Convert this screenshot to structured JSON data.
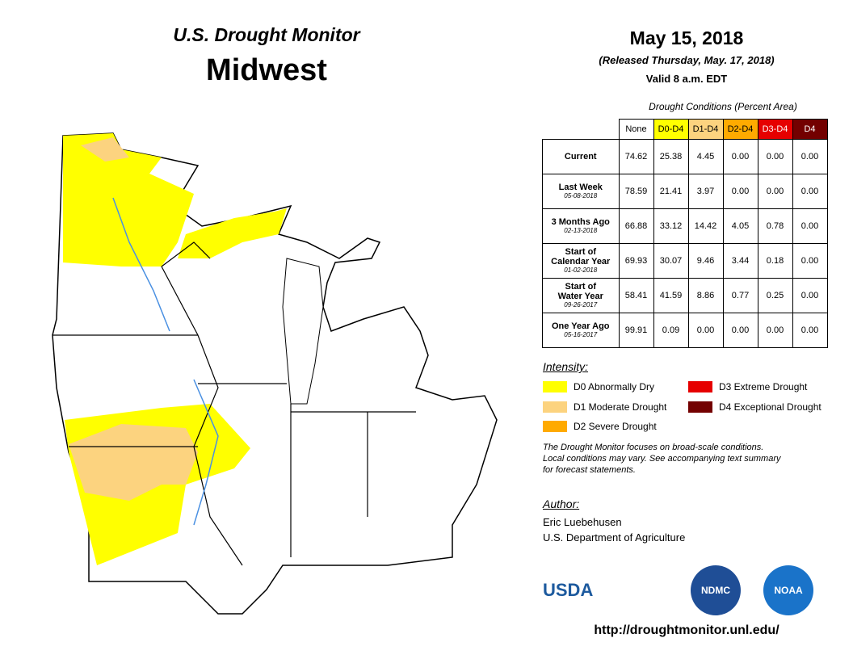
{
  "header": {
    "title": "U.S. Drought Monitor",
    "region": "Midwest",
    "date": "May 15, 2018",
    "released": "(Released Thursday, May. 17, 2018)",
    "valid": "Valid 8 a.m. EDT"
  },
  "table": {
    "caption": "Drought Conditions (Percent Area)",
    "columns": [
      {
        "label": "None",
        "color": "#ffffff",
        "text_color": "#000000"
      },
      {
        "label": "D0-D4",
        "color": "#ffff00",
        "text_color": "#000000"
      },
      {
        "label": "D1-D4",
        "color": "#fcd37f",
        "text_color": "#000000"
      },
      {
        "label": "D2-D4",
        "color": "#ffaa00",
        "text_color": "#000000"
      },
      {
        "label": "D3-D4",
        "color": "#e60000",
        "text_color": "#ffffff"
      },
      {
        "label": "D4",
        "color": "#730000",
        "text_color": "#ffffff"
      }
    ],
    "rows": [
      {
        "label": [
          "Current"
        ],
        "values": [
          "74.62",
          "25.38",
          "4.45",
          "0.00",
          "0.00",
          "0.00"
        ]
      },
      {
        "label": [
          "Last Week"
        ],
        "date": "05-08-2018",
        "values": [
          "78.59",
          "21.41",
          "3.97",
          "0.00",
          "0.00",
          "0.00"
        ]
      },
      {
        "label": [
          "3 Months Ago"
        ],
        "date": "02-13-2018",
        "values": [
          "66.88",
          "33.12",
          "14.42",
          "4.05",
          "0.78",
          "0.00"
        ]
      },
      {
        "label": [
          "Start of",
          "Calendar Year"
        ],
        "date": "01-02-2018",
        "values": [
          "69.93",
          "30.07",
          "9.46",
          "3.44",
          "0.18",
          "0.00"
        ]
      },
      {
        "label": [
          "Start of",
          "Water Year"
        ],
        "date": "09-26-2017",
        "values": [
          "58.41",
          "41.59",
          "8.86",
          "0.77",
          "0.25",
          "0.00"
        ]
      },
      {
        "label": [
          "One Year Ago"
        ],
        "date": "05-16-2017",
        "values": [
          "99.91",
          "0.09",
          "0.00",
          "0.00",
          "0.00",
          "0.00"
        ]
      }
    ]
  },
  "legend": {
    "title": "Intensity:",
    "items": [
      {
        "label": "D0 Abnormally Dry",
        "color": "#ffff00"
      },
      {
        "label": "D1 Moderate Drought",
        "color": "#fcd37f"
      },
      {
        "label": "D2 Severe Drought",
        "color": "#ffaa00"
      },
      {
        "label": "D3 Extreme Drought",
        "color": "#e60000"
      },
      {
        "label": "D4 Exceptional Drought",
        "color": "#730000"
      }
    ]
  },
  "note": [
    "The Drought Monitor focuses on broad-scale conditions.",
    "Local conditions may vary. See accompanying text summary",
    "for forecast statements."
  ],
  "author": {
    "title": "Author:",
    "lines": [
      "Eric Luebehusen",
      "U.S. Department of Agriculture"
    ]
  },
  "logos": [
    "USDA",
    "NDMC",
    "NOAA"
  ],
  "url": "http://droughtmonitor.unl.edu/"
}
